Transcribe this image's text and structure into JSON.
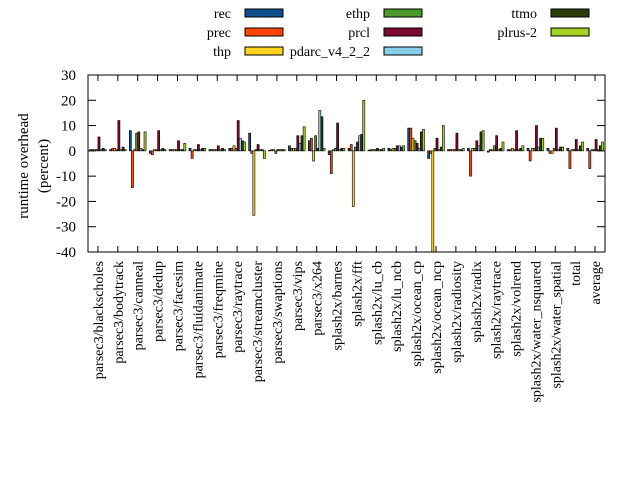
{
  "chart_data": {
    "type": "bar",
    "title": "",
    "xlabel": "",
    "ylabel": "runtime overhead",
    "ylabel_unit": "(percent)",
    "ylim": [
      -40,
      30
    ],
    "yticks": [
      30,
      20,
      10,
      0,
      -10,
      -20,
      -30,
      -40
    ],
    "grid": false,
    "legend_position": "top",
    "categories": [
      "parsec3/blackscholes",
      "parsec3/bodytrack",
      "parsec3/canneal",
      "parsec3/dedup",
      "parsec3/facesim",
      "parsec3/fluidanimate",
      "parsec3/freqmine",
      "parsec3/raytrace",
      "parsec3/streamcluster",
      "parsec3/swaptions",
      "parsec3/vips",
      "parsec3/x264",
      "splash2x/barnes",
      "splash2x/fft",
      "splash2x/lu_cb",
      "splash2x/lu_ncb",
      "splash2x/ocean_cp",
      "splash2x/ocean_ncp",
      "splash2x/radiosity",
      "splash2x/radix",
      "splash2x/raytrace",
      "splash2x/volrend",
      "splash2x/water_nsquared",
      "splash2x/water_spatial",
      "total",
      "average"
    ],
    "series": [
      {
        "name": "rec",
        "color": "#0b4f8c",
        "values": [
          0.5,
          0.5,
          8,
          -1,
          0.5,
          1,
          0.5,
          1,
          7,
          0.2,
          2,
          4,
          -1.5,
          1,
          0.3,
          1,
          9,
          -3,
          0.5,
          1,
          -0.5,
          0.5,
          1,
          1,
          1,
          1
        ]
      },
      {
        "name": "prec",
        "color": "#ff4500",
        "values": [
          0.5,
          1,
          -14.5,
          -1.5,
          0.5,
          -3,
          0.5,
          1,
          -1,
          0.5,
          1,
          5,
          -9,
          2.5,
          0.5,
          0.5,
          9,
          -1,
          0.5,
          -10,
          0.5,
          0.5,
          -4,
          -1,
          -7,
          -7
        ]
      },
      {
        "name": "thp",
        "color": "#ffd21f",
        "values": [
          0.5,
          1,
          0.5,
          0.5,
          0.5,
          0.5,
          0.5,
          2,
          -25.5,
          0.5,
          1,
          -4,
          0.5,
          -22,
          0.5,
          1,
          5,
          -40,
          0.5,
          1,
          0.5,
          1,
          1,
          -1,
          0.5,
          0.5
        ]
      },
      {
        "name": "ethp",
        "color": "#4c9a2a",
        "values": [
          0.5,
          0.5,
          7,
          0.5,
          0.5,
          0.5,
          0.5,
          1,
          0.5,
          -1,
          1,
          6,
          1,
          1.5,
          0.5,
          1,
          4,
          1,
          0.5,
          1,
          2,
          0.5,
          1,
          1,
          0.5,
          0.5
        ]
      },
      {
        "name": "prcl",
        "color": "#7a0a30",
        "values": [
          5.5,
          12,
          7.5,
          8,
          4,
          2.5,
          2,
          12,
          2.5,
          0.5,
          6,
          1,
          11,
          3.5,
          1,
          2,
          3,
          5,
          7,
          4,
          6,
          8,
          10,
          9,
          4.5,
          4.5
        ]
      },
      {
        "name": "pdarc_v4_2_2",
        "color": "#87ceeb",
        "values": [
          0.5,
          0.5,
          1,
          0.5,
          0.5,
          0.5,
          0.5,
          5,
          0.5,
          0.5,
          3,
          16,
          0.5,
          6,
          0.5,
          2,
          1,
          0.5,
          0.5,
          2,
          0.5,
          0.5,
          1.5,
          0.5,
          0.5,
          0.5
        ]
      },
      {
        "name": "ttmo",
        "color": "#2d3a0a",
        "values": [
          1,
          1.5,
          0.5,
          1,
          0.5,
          1,
          1,
          4,
          0.5,
          0.5,
          6,
          13.5,
          1,
          6.5,
          0.5,
          1.5,
          7.5,
          1.5,
          0.5,
          7.5,
          1,
          1,
          5,
          1.5,
          2,
          2
        ]
      },
      {
        "name": "plrus-2",
        "color": "#a6d323",
        "values": [
          0.5,
          0.5,
          7.5,
          0.5,
          3,
          1,
          0.5,
          3.5,
          -3,
          0.5,
          9.5,
          1,
          1,
          20,
          1,
          2,
          8.5,
          10,
          1,
          8,
          3.5,
          2,
          5,
          1.5,
          3.5,
          3.5
        ]
      }
    ]
  }
}
